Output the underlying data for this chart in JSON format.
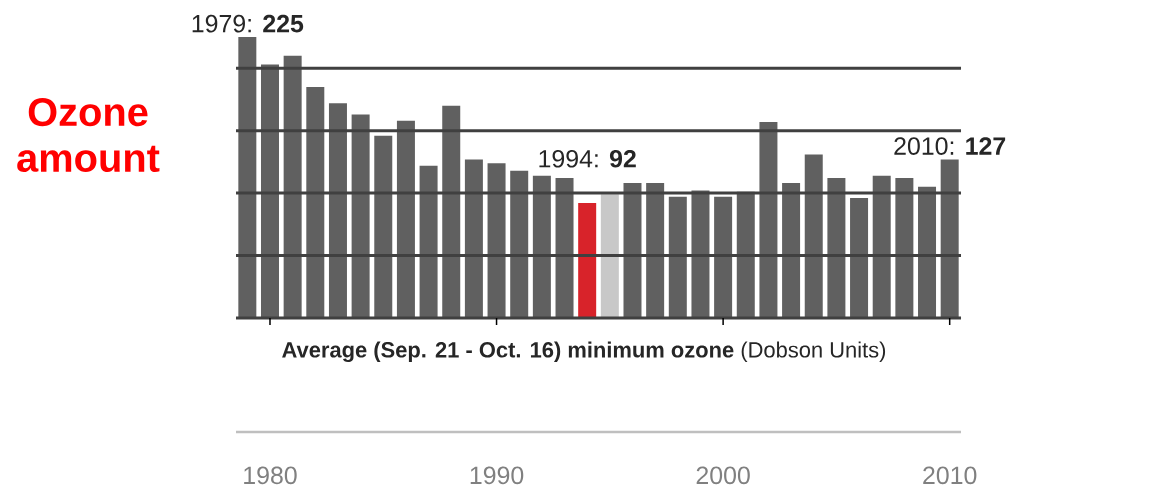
{
  "chart_data": {
    "type": "bar",
    "ylabel": "Ozone amount",
    "xlabel": "**Average (Sep. 21 - Oct. 16) minimum ozone** (Dobson Units)",
    "x": [
      1979,
      1980,
      1981,
      1982,
      1983,
      1984,
      1985,
      1986,
      1987,
      1988,
      1989,
      1990,
      1991,
      1992,
      1993,
      1994,
      1995,
      1996,
      1997,
      1998,
      1999,
      2000,
      2001,
      2002,
      2003,
      2004,
      2005,
      2006,
      2007,
      2008,
      2009,
      2010
    ],
    "values": [
      225,
      203,
      210,
      185,
      172,
      163,
      146,
      158,
      122,
      170,
      127,
      124,
      118,
      114,
      112,
      92,
      99,
      108,
      108,
      97,
      102,
      97,
      101,
      157,
      108,
      131,
      112,
      96,
      114,
      112,
      105,
      127
    ],
    "colors": [
      "#606060",
      "#606060",
      "#606060",
      "#606060",
      "#606060",
      "#606060",
      "#606060",
      "#606060",
      "#606060",
      "#606060",
      "#606060",
      "#606060",
      "#606060",
      "#606060",
      "#606060",
      "#d8232a",
      "#c8c8c8",
      "#606060",
      "#606060",
      "#606060",
      "#606060",
      "#606060",
      "#606060",
      "#606060",
      "#606060",
      "#606060",
      "#606060",
      "#606060",
      "#606060",
      "#606060",
      "#606060",
      "#606060"
    ],
    "value_labels": [
      "1979: **225**",
      null,
      null,
      null,
      null,
      null,
      null,
      null,
      null,
      null,
      null,
      null,
      null,
      null,
      null,
      "1994: **92**",
      null,
      null,
      null,
      null,
      null,
      null,
      null,
      null,
      null,
      null,
      null,
      null,
      null,
      null,
      null,
      "2010: **127**"
    ],
    "xlim": [
      1978.5,
      2010.5
    ],
    "xticks": [
      1980,
      1990,
      2000,
      2010
    ],
    "ylim": [
      0,
      225
    ],
    "yticks": [
      {
        "value": 0,
        "label": null
      },
      {
        "value": 50,
        "label": null
      },
      {
        "value": 100,
        "label": null
      },
      {
        "value": 150,
        "label": null
      },
      {
        "value": 200,
        "label": null
      }
    ],
    "grid": "y",
    "tick_labels": "x"
  }
}
